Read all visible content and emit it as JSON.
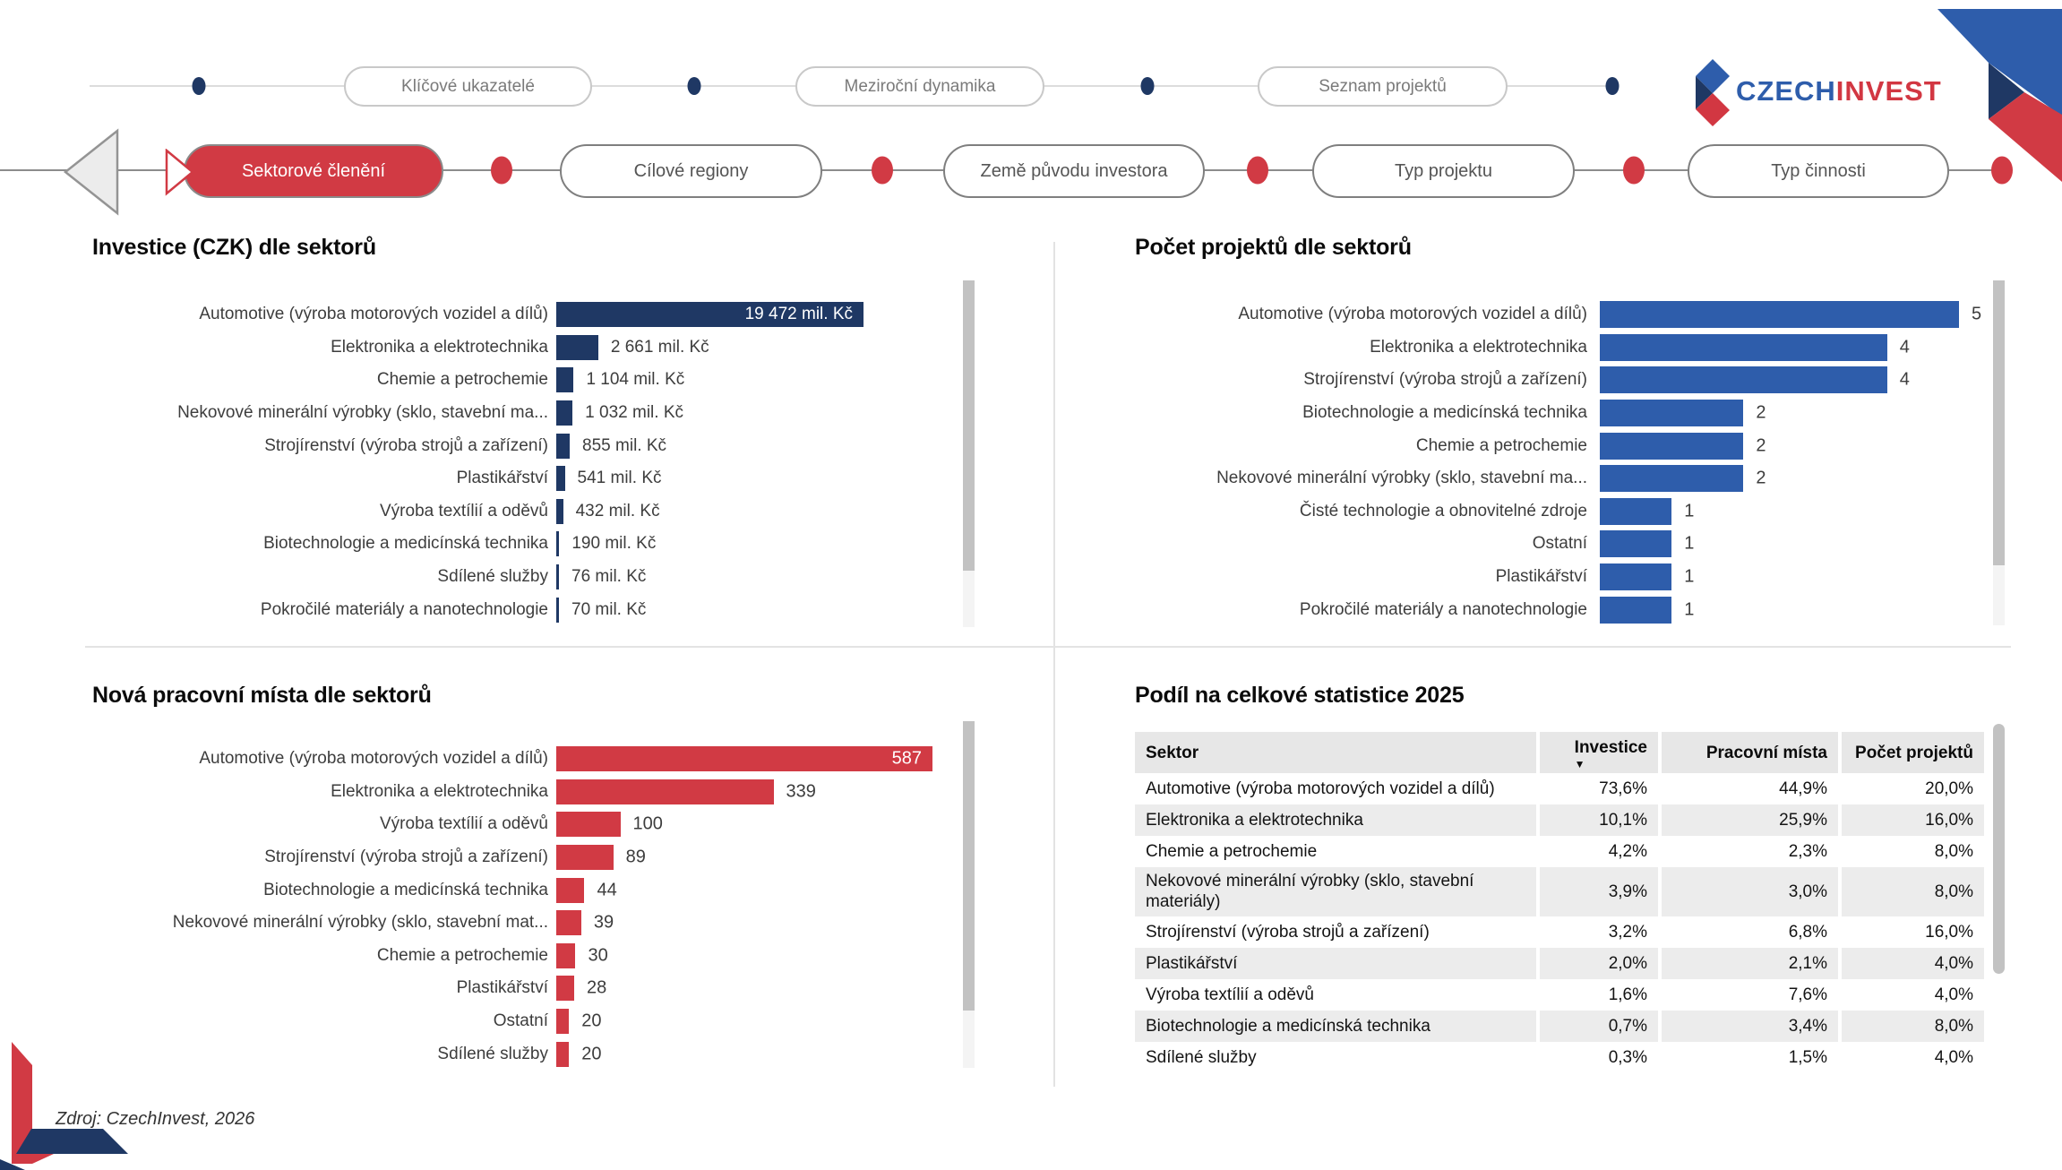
{
  "nav": {
    "top_row": [
      "Klíčové ukazatelé",
      "Meziroční dynamika",
      "Seznam projektů"
    ],
    "bottom_row": [
      "Sektorové členění",
      "Cílové regiony",
      "Země původu investora",
      "Typ projektu",
      "Typ činnosti"
    ],
    "active_tab": "Sektorové členění"
  },
  "logo": {
    "brand_part1": "CZECH",
    "brand_part2": "INVEST"
  },
  "footer": {
    "source": "Zdroj: CzechInvest, 2026"
  },
  "colors": {
    "navy": "#1f3864",
    "blue": "#2e5dab",
    "red": "#d13a44",
    "header_gray": "#e7e7e7",
    "stripe_gray": "#ececec"
  },
  "chart_data": [
    {
      "type": "bar",
      "orientation": "horizontal",
      "title": "Investice (CZK) dle sektorů",
      "unit": "mil. Kč",
      "bar_color": "#1f3864",
      "categories": [
        "Automotive (výroba motorových vozidel a dílů)",
        "Elektronika a elektrotechnika",
        "Chemie a petrochemie",
        "Nekovové minerální výrobky (sklo, stavební ma...",
        "Strojírenství (výroba strojů a zařízení)",
        "Plastikářství",
        "Výroba textílií a oděvů",
        "Biotechnologie a medicínská technika",
        "Sdílené služby",
        "Pokročilé materiály a nanotechnologie"
      ],
      "values": [
        19472,
        2661,
        1104,
        1032,
        855,
        541,
        432,
        190,
        76,
        70
      ],
      "value_labels": [
        "19 472 mil. Kč",
        "2 661 mil. Kč",
        "1 104 mil. Kč",
        "1 032 mil. Kč",
        "855 mil. Kč",
        "541 mil. Kč",
        "432 mil. Kč",
        "190 mil. Kč",
        "76 mil. Kč",
        "70 mil. Kč"
      ],
      "xlim": [
        0,
        19472
      ]
    },
    {
      "type": "bar",
      "orientation": "horizontal",
      "title": "Počet projektů dle sektorů",
      "unit": "projekty",
      "bar_color": "#2e5dab",
      "categories": [
        "Automotive (výroba motorových vozidel a dílů)",
        "Elektronika a elektrotechnika",
        "Strojírenství (výroba strojů a zařízení)",
        "Biotechnologie a medicínská technika",
        "Chemie a petrochemie",
        "Nekovové minerální výrobky (sklo, stavební ma...",
        "Čisté technologie a obnovitelné zdroje",
        "Ostatní",
        "Plastikářství",
        "Pokročilé materiály a nanotechnologie"
      ],
      "values": [
        5,
        4,
        4,
        2,
        2,
        2,
        1,
        1,
        1,
        1
      ],
      "value_labels": [
        "5",
        "4",
        "4",
        "2",
        "2",
        "2",
        "1",
        "1",
        "1",
        "1"
      ],
      "xlim": [
        0,
        5
      ]
    },
    {
      "type": "bar",
      "orientation": "horizontal",
      "title": "Nová pracovní místa dle sektorů",
      "unit": "pracovní místa",
      "bar_color": "#d13a44",
      "categories": [
        "Automotive (výroba motorových vozidel a dílů)",
        "Elektronika a elektrotechnika",
        "Výroba textílií a oděvů",
        "Strojírenství (výroba strojů a zařízení)",
        "Biotechnologie a medicínská technika",
        "Nekovové minerální výrobky (sklo, stavební mat...",
        "Chemie a petrochemie",
        "Plastikářství",
        "Ostatní",
        "Sdílené služby"
      ],
      "values": [
        587,
        339,
        100,
        89,
        44,
        39,
        30,
        28,
        20,
        20
      ],
      "value_labels": [
        "587",
        "339",
        "100",
        "89",
        "44",
        "39",
        "30",
        "28",
        "20",
        "20"
      ],
      "xlim": [
        0,
        587
      ]
    },
    {
      "type": "table",
      "title": "Podíl na celkové statistice 2025",
      "columns": [
        "Sektor",
        "Investice",
        "Pracovní místa",
        "Počet projektů"
      ],
      "sorted_by": "Investice",
      "sort_direction": "desc",
      "rows": [
        [
          "Automotive (výroba motorových vozidel a dílů)",
          "73,6%",
          "44,9%",
          "20,0%"
        ],
        [
          "Elektronika a elektrotechnika",
          "10,1%",
          "25,9%",
          "16,0%"
        ],
        [
          "Chemie a petrochemie",
          "4,2%",
          "2,3%",
          "8,0%"
        ],
        [
          "Nekovové minerální výrobky (sklo, stavební materiály)",
          "3,9%",
          "3,0%",
          "8,0%"
        ],
        [
          "Strojírenství (výroba strojů a zařízení)",
          "3,2%",
          "6,8%",
          "16,0%"
        ],
        [
          "Plastikářství",
          "2,0%",
          "2,1%",
          "4,0%"
        ],
        [
          "Výroba textílií a oděvů",
          "1,6%",
          "7,6%",
          "4,0%"
        ],
        [
          "Biotechnologie a medicínská technika",
          "0,7%",
          "3,4%",
          "8,0%"
        ],
        [
          "Sdílené služby",
          "0,3%",
          "1,5%",
          "4,0%"
        ]
      ]
    }
  ]
}
